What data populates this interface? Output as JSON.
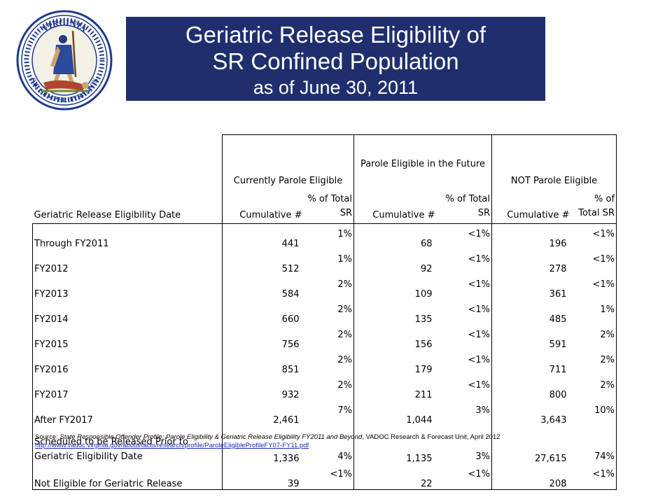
{
  "header": {
    "title_line1": "Geriatric Release Eligibility of",
    "title_line2": "SR Confined Population",
    "title_line3": "as of June 30, 2011",
    "seal_top_text": "VIRGINIA",
    "seal_bottom_text": "SIC SEMPER TYRANNIS",
    "title_bg_color": "#1f2f6e",
    "seal_color": "#1e3a8c"
  },
  "table": {
    "group_headers": {
      "currently": "Currently Parole Eligible",
      "future": "Parole Eligible in the Future",
      "not": "NOT Parole Eligible"
    },
    "sub_headers": {
      "label": "Geriatric Release Eligibility Date",
      "cumulative": "Cumulative #",
      "pct_split": "% of Total SR",
      "pct_future": "% of Total SR"
    },
    "rows": [
      {
        "label": "Through FY2011",
        "c1": "441",
        "p1": "1%",
        "c2": "68",
        "p2": "<1%",
        "c3": "196",
        "p3": "<1%"
      },
      {
        "label": "FY2012",
        "c1": "512",
        "p1": "1%",
        "c2": "92",
        "p2": "<1%",
        "c3": "278",
        "p3": "<1%"
      },
      {
        "label": "FY2013",
        "c1": "584",
        "p1": "2%",
        "c2": "109",
        "p2": "<1%",
        "c3": "361",
        "p3": "<1%"
      },
      {
        "label": "FY2014",
        "c1": "660",
        "p1": "2%",
        "c2": "135",
        "p2": "<1%",
        "c3": "485",
        "p3": "1%"
      },
      {
        "label": "FY2015",
        "c1": "756",
        "p1": "2%",
        "c2": "156",
        "p2": "<1%",
        "c3": "591",
        "p3": "2%"
      },
      {
        "label": "FY2016",
        "c1": "851",
        "p1": "2%",
        "c2": "179",
        "p2": "<1%",
        "c3": "711",
        "p3": "2%"
      },
      {
        "label": "FY2017",
        "c1": "932",
        "p1": "2%",
        "c2": "211",
        "p2": "<1%",
        "c3": "800",
        "p3": "2%"
      },
      {
        "label": "After FY2017",
        "c1": "2,461",
        "p1": "7%",
        "c2": "1,044",
        "p2": "3%",
        "c3": "3,643",
        "p3": "10%"
      },
      {
        "label": "Scheduled to be Released Prior to Geriatric Eligibility Date",
        "c1": "1,336",
        "p1": "4%",
        "c2": "1,135",
        "p2": "3%",
        "c3": "27,615",
        "p3": "74%"
      },
      {
        "label": "Not Eligible for Geriatric Release",
        "c1": "39",
        "p1": "<1%",
        "c2": "22",
        "p2": "<1%",
        "c3": "208",
        "p3": "<1%"
      }
    ]
  },
  "footer": {
    "source_prefix": "Source: ",
    "source_title": "State Responsible Offender Profile: Parole Eligibility  & Geriatric Release Eligibility  FY2011 and Beyond",
    "source_suffix": ", VADOC Research & Forecast Unit, April 2012",
    "source_url": "http://www.vadoc.virginia.gov/about/facts/research/profile/ParoleEligibleProfileFY07-FY11.pdf"
  }
}
